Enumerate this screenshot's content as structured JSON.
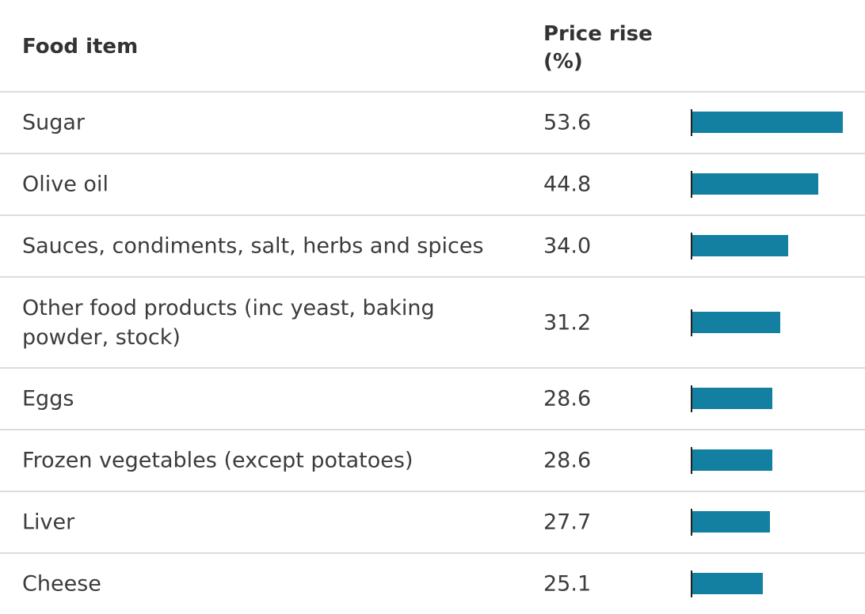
{
  "header": {
    "item_label": "Food item",
    "value_label_line1": "Price rise",
    "value_label_line2": "(%)"
  },
  "colors": {
    "bar": "#1380a1",
    "rule": "#dcdcdc"
  },
  "chart_data": {
    "type": "table",
    "columns": [
      "Food item",
      "Price rise (%)"
    ],
    "bar_max": 53.6,
    "rows": [
      {
        "name": "Sugar",
        "value": "53.6",
        "num": 53.6
      },
      {
        "name": "Olive oil",
        "value": "44.8",
        "num": 44.8
      },
      {
        "name": "Sauces, condiments, salt, herbs and spices",
        "value": "34.0",
        "num": 34.0
      },
      {
        "name": "Other food products (inc yeast, baking powder, stock)",
        "value": "31.2",
        "num": 31.2
      },
      {
        "name": "Eggs",
        "value": "28.6",
        "num": 28.6
      },
      {
        "name": "Frozen vegetables (except potatoes)",
        "value": "28.6",
        "num": 28.6
      },
      {
        "name": "Liver",
        "value": "27.7",
        "num": 27.7
      },
      {
        "name": "Cheese",
        "value": "25.1",
        "num": 25.1
      }
    ]
  }
}
